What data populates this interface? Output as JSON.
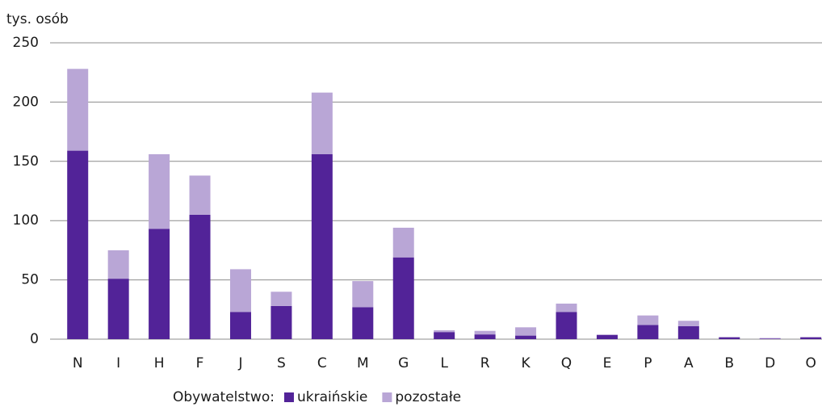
{
  "chart_data": {
    "type": "stacked_bar",
    "y_label": "tys. osób",
    "categories": [
      "N",
      "I",
      "H",
      "F",
      "J",
      "S",
      "C",
      "M",
      "G",
      "L",
      "R",
      "K",
      "Q",
      "E",
      "P",
      "A",
      "B",
      "D",
      "O"
    ],
    "series": [
      {
        "name": "ukraińskie",
        "color": "#522398",
        "values": [
          159,
          51,
          93,
          105,
          23,
          28,
          156,
          27,
          69,
          6,
          4,
          3,
          23,
          3.5,
          12,
          11,
          1.5,
          0.5,
          1.5
        ]
      },
      {
        "name": "pozostałe",
        "color": "#b9a6d6",
        "values": [
          69,
          24,
          63,
          33,
          36,
          12,
          52,
          22,
          25,
          1.5,
          3,
          7,
          7,
          0.5,
          8,
          4.5,
          0.5,
          0.5,
          0.5
        ]
      }
    ],
    "legend_title": "Obywatelstwo:",
    "ylim": [
      0,
      250
    ],
    "yticks": [
      0,
      50,
      100,
      150,
      200,
      250
    ],
    "grid": true
  }
}
